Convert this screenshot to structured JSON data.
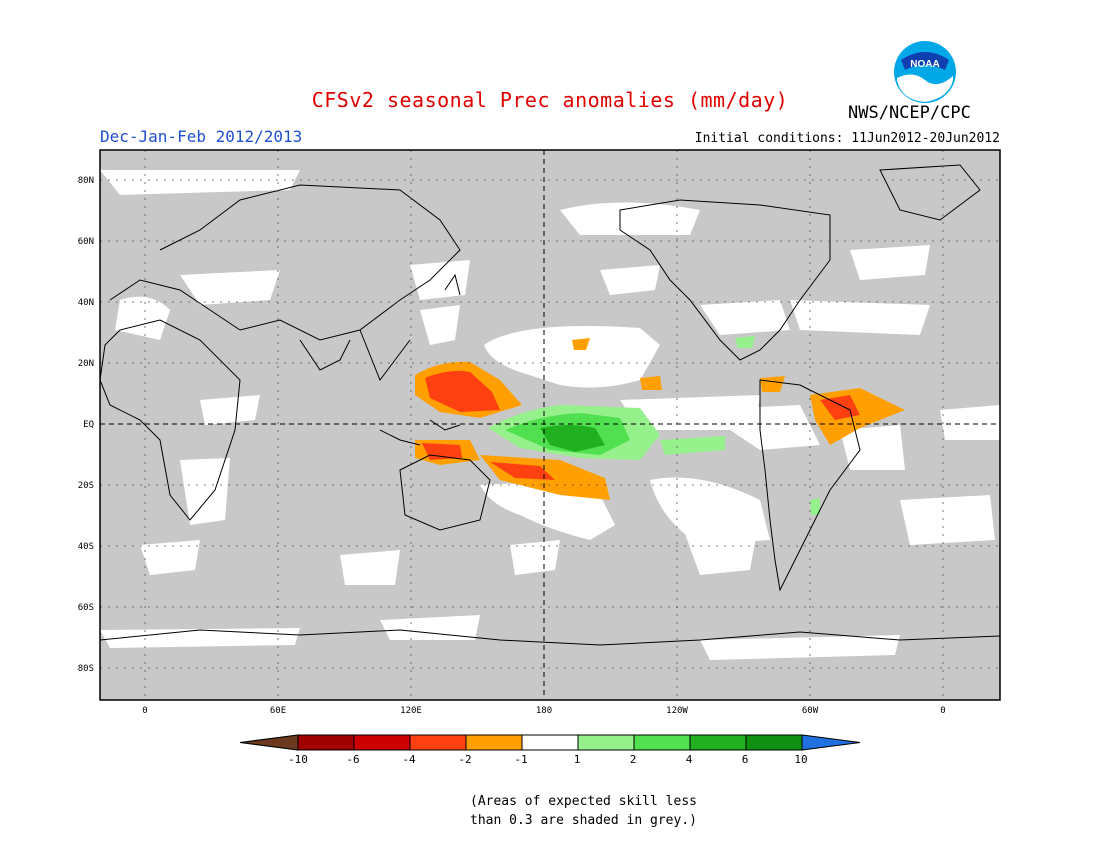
{
  "title": "CFSv2 seasonal Prec anomalies (mm/day)",
  "title_color": "#e00000",
  "season": "Dec-Jan-Feb 2012/2013",
  "season_color": "#2050d0",
  "initial_conditions": "Initial conditions: 11Jun2012-20Jun2012",
  "agency": "NWS/NCEP/CPC",
  "logo_text": "NOAA",
  "map": {
    "lat_labels": [
      "80N",
      "60N",
      "40N",
      "20N",
      "EQ",
      "20S",
      "40S",
      "60S",
      "80S"
    ],
    "lon_labels": [
      "0",
      "60E",
      "120E",
      "180",
      "120W",
      "60W",
      "0"
    ],
    "background_grey": "#c8c8c8"
  },
  "colorbar": {
    "labels": [
      "-10",
      "-6",
      "-4",
      "-2",
      "-1",
      "1",
      "2",
      "4",
      "6",
      "10"
    ],
    "colors": [
      "#6b3a1e",
      "#a00000",
      "#cc0000",
      "#ff4010",
      "#ffa000",
      "#ffffff",
      "#96f08c",
      "#50e050",
      "#20b020",
      "#109010",
      "#2070e0"
    ]
  },
  "note": [
    "(Areas of expected skill less",
    "than 0.3 are shaded in grey.)"
  ]
}
